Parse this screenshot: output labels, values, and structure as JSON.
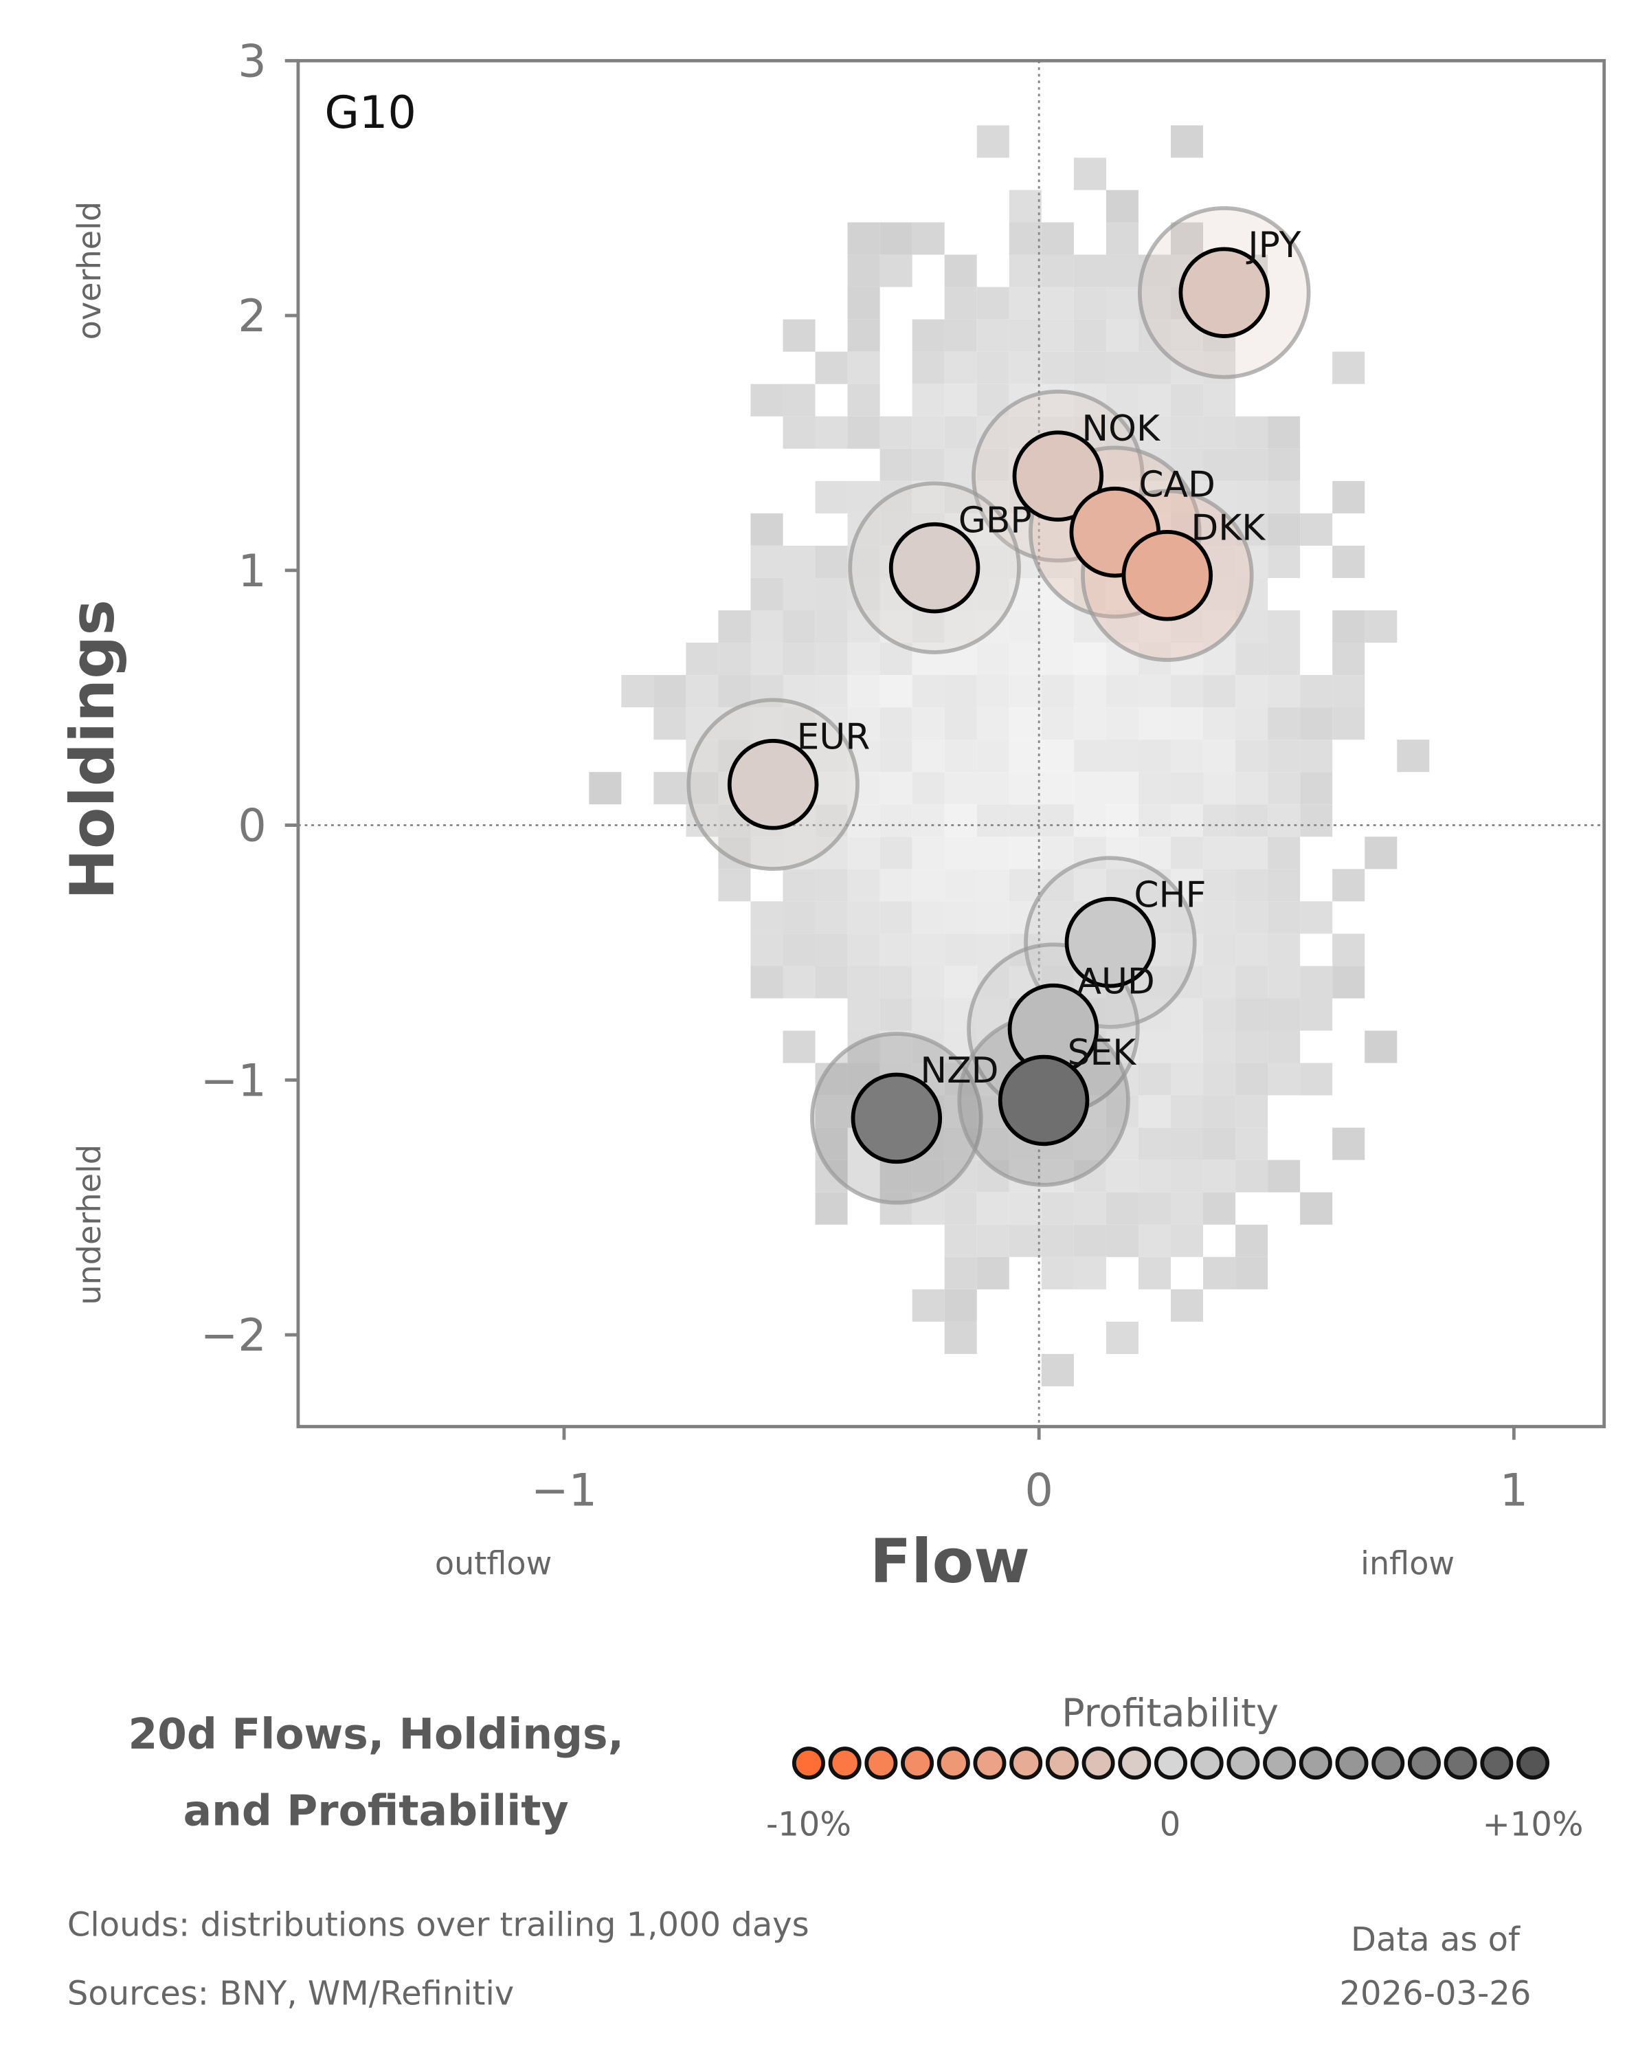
{
  "chart_data": {
    "type": "scatter",
    "panel_label": "G10",
    "xlabel": "Flow",
    "ylabel": "Holdings",
    "x_annotations": {
      "left": "outflow",
      "right": "inflow"
    },
    "y_annotations": {
      "top": "overheld",
      "bottom": "underheld"
    },
    "xlim": [
      -1.56,
      1.19
    ],
    "ylim": [
      -2.36,
      3
    ],
    "xticks": [
      {
        "v": -1,
        "label": "−1"
      },
      {
        "v": 0,
        "label": "0"
      },
      {
        "v": 1,
        "label": "1"
      }
    ],
    "yticks": [
      {
        "v": -2,
        "label": "−2"
      },
      {
        "v": -1,
        "label": "−1"
      },
      {
        "v": 0,
        "label": "0"
      },
      {
        "v": 1,
        "label": "1"
      },
      {
        "v": 2,
        "label": "2"
      },
      {
        "v": 3,
        "label": "3"
      }
    ],
    "points": [
      {
        "name": "JPY",
        "x": 0.39,
        "y": 2.09,
        "profitability": -1.5
      },
      {
        "name": "NOK",
        "x": 0.04,
        "y": 1.37,
        "profitability": -1.5
      },
      {
        "name": "GBP",
        "x": -0.22,
        "y": 1.01,
        "profitability": -0.8
      },
      {
        "name": "CAD",
        "x": 0.16,
        "y": 1.15,
        "profitability": -3.5
      },
      {
        "name": "DKK",
        "x": 0.27,
        "y": 0.98,
        "profitability": -4
      },
      {
        "name": "EUR",
        "x": -0.56,
        "y": 0.16,
        "profitability": -0.8
      },
      {
        "name": "CHF",
        "x": 0.15,
        "y": -0.46,
        "profitability": 1
      },
      {
        "name": "AUD",
        "x": 0.03,
        "y": -0.8,
        "profitability": 2
      },
      {
        "name": "NZD",
        "x": -0.3,
        "y": -1.15,
        "profitability": 7
      },
      {
        "name": "SEK",
        "x": 0.01,
        "y": -1.08,
        "profitability": 8
      }
    ],
    "reference_lines": {
      "x": 0,
      "y": 0
    },
    "colorscale": {
      "title": "Profitability",
      "min": -10,
      "max": 10,
      "min_label": "-10%",
      "mid_label": "0",
      "max_label": "+10%",
      "low_color": "#ff6e35",
      "mid_color": "#d6d6d6",
      "high_color": "#555555"
    }
  },
  "title": "20d Flows, Holdings,\nand Profitability",
  "title_lines": [
    "20d Flows, Holdings,",
    "and Profitability"
  ],
  "notes": {
    "clouds": "Clouds:  distributions over trailing 1,000 days",
    "sources": "Sources:  BNY, WM/Refinitiv",
    "data_as_of_label": "Data as of",
    "data_as_of": "2026-03-26"
  }
}
